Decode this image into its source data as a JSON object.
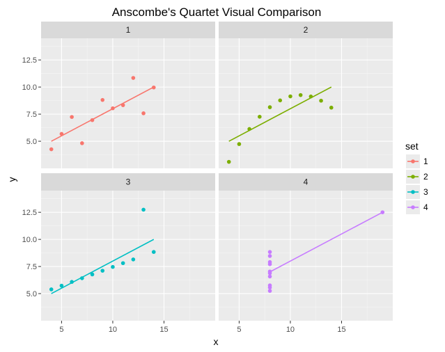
{
  "chart_data": {
    "type": "scatter",
    "title": "Anscombe's Quartet Visual Comparison",
    "xlabel": "x",
    "ylabel": "y",
    "xlim": [
      3,
      20
    ],
    "ylim": [
      2.5,
      14.5
    ],
    "x_ticks": [
      5,
      10,
      15
    ],
    "y_ticks": [
      5.0,
      7.5,
      10.0,
      12.5
    ],
    "x_tick_labels": [
      "5",
      "10",
      "15"
    ],
    "y_tick_labels": [
      "5.0",
      "7.5",
      "10.0",
      "12.5"
    ],
    "grid": true,
    "legend": {
      "title": "set",
      "position": "right"
    },
    "panels": [
      {
        "label": "1",
        "color": "#F8766D",
        "x": [
          10,
          8,
          13,
          9,
          11,
          14,
          6,
          4,
          12,
          7,
          5
        ],
        "y": [
          8.04,
          6.95,
          7.58,
          8.81,
          8.33,
          9.96,
          7.24,
          4.26,
          10.84,
          4.82,
          5.68
        ],
        "line": [
          [
            4,
            5.0
          ],
          [
            14,
            10.0
          ]
        ]
      },
      {
        "label": "2",
        "color": "#7CAE00",
        "x": [
          10,
          8,
          13,
          9,
          11,
          14,
          6,
          4,
          12,
          7,
          5
        ],
        "y": [
          9.14,
          8.14,
          8.74,
          8.77,
          9.26,
          8.1,
          6.13,
          3.1,
          9.13,
          7.26,
          4.74
        ],
        "line": [
          [
            4,
            5.0
          ],
          [
            14,
            10.0
          ]
        ]
      },
      {
        "label": "3",
        "color": "#00BFC4",
        "x": [
          10,
          8,
          13,
          9,
          11,
          14,
          6,
          4,
          12,
          7,
          5
        ],
        "y": [
          7.46,
          6.77,
          12.74,
          7.11,
          7.81,
          8.84,
          6.08,
          5.39,
          8.15,
          6.42,
          5.73
        ],
        "line": [
          [
            4,
            5.0
          ],
          [
            14,
            10.0
          ]
        ]
      },
      {
        "label": "4",
        "color": "#C77CFF",
        "x": [
          8,
          8,
          8,
          8,
          8,
          8,
          8,
          19,
          8,
          8,
          8
        ],
        "y": [
          6.58,
          5.76,
          7.71,
          8.84,
          8.47,
          7.04,
          5.25,
          12.5,
          5.56,
          7.91,
          6.89
        ],
        "line": [
          [
            8,
            7.0
          ],
          [
            19,
            12.5
          ]
        ]
      }
    ]
  }
}
